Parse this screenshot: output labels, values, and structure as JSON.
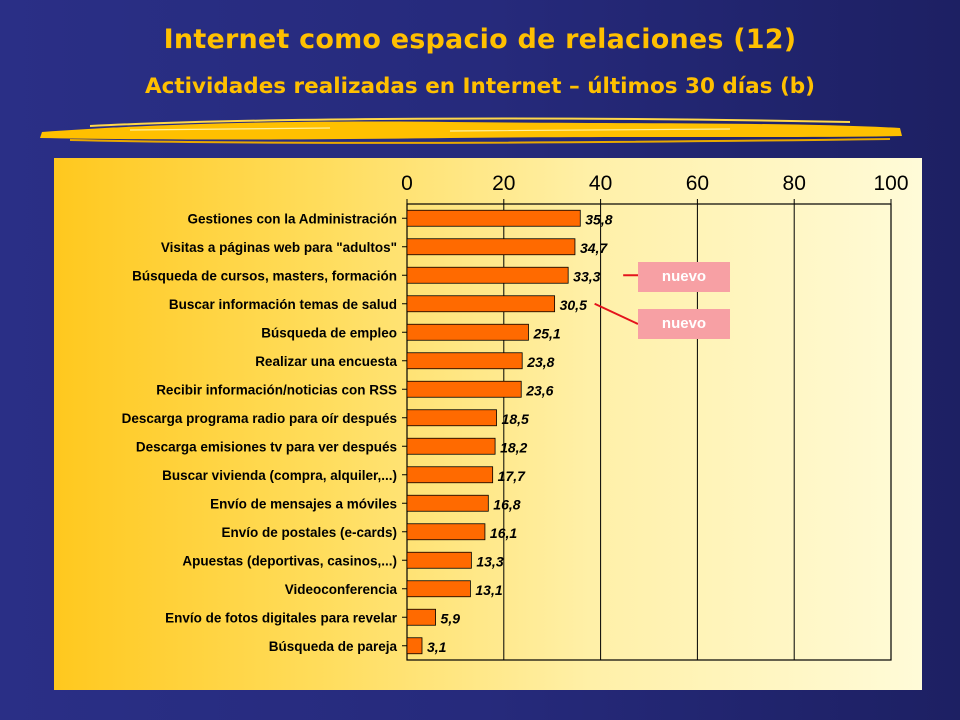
{
  "header": {
    "title": "Internet como espacio de relaciones (12)",
    "subtitle": "Actividades realizadas en Internet – últimos 30 días (b)"
  },
  "colors": {
    "bar": "#ff6a00",
    "title": "#ffc000",
    "tag": "#f7a0a4",
    "connector": "#e4141c"
  },
  "callouts": [
    {
      "text": "nuevo",
      "points_to": "Búsqueda de cursos, masters, formación"
    },
    {
      "text": "nuevo",
      "points_to": "Buscar información temas de salud"
    }
  ],
  "chart_data": {
    "type": "bar",
    "orientation": "horizontal",
    "categories": [
      "Gestiones con la Administración",
      "Visitas a páginas web para \"adultos\"",
      "Búsqueda de cursos, masters, formación",
      "Buscar información temas de salud",
      "Búsqueda de empleo",
      "Realizar una encuesta",
      "Recibir información/noticias con RSS",
      "Descarga programa radio para oír después",
      "Descarga emisiones tv para ver después",
      "Buscar vivienda (compra, alquiler,...)",
      "Envío de mensajes a móviles",
      "Envío de postales (e-cards)",
      "Apuestas (deportivas, casinos,...)",
      "Videoconferencia",
      "Envío de fotos digitales para revelar",
      "Búsqueda de pareja"
    ],
    "values": [
      35.8,
      34.7,
      33.3,
      30.5,
      25.1,
      23.8,
      23.6,
      18.5,
      18.2,
      17.7,
      16.8,
      16.1,
      13.3,
      13.1,
      5.9,
      3.1
    ],
    "value_labels": [
      "35,8",
      "34,7",
      "33,3",
      "30,5",
      "25,1",
      "23,8",
      "23,6",
      "18,5",
      "18,2",
      "17,7",
      "16,8",
      "16,1",
      "13,3",
      "13,1",
      "5,9",
      "3,1"
    ],
    "xlim": [
      0,
      100
    ],
    "ticks": [
      0,
      20,
      40,
      60,
      80,
      100
    ],
    "tick_labels": [
      "0",
      "20",
      "40",
      "60",
      "80",
      "100"
    ],
    "axis_position": "top",
    "grid": true
  }
}
